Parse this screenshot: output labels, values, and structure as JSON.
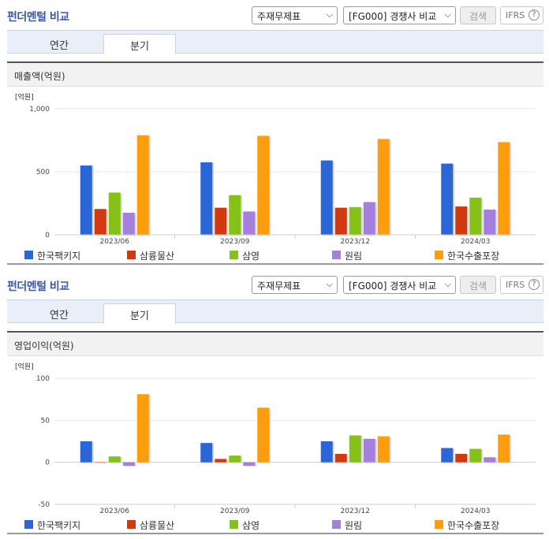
{
  "colors": {
    "s0": "#2a66d6",
    "s1": "#d13a10",
    "s2": "#86c118",
    "s3": "#a57fdd",
    "s4": "#fb9d0c"
  },
  "legend": [
    "한국팩키지",
    "삼륭물산",
    "삼영",
    "원림",
    "한국수출포장"
  ],
  "sections": [
    {
      "title": "펀더멘털 비교",
      "select1": "주재무제표",
      "select2": "[FG000] 경쟁사 비교",
      "search_label": "검색",
      "ifrs_label": "IFRS",
      "ifrs_help": "?",
      "tabs": [
        "연간",
        "분기"
      ],
      "active_tab": "분기",
      "panel_title": "매출액(억원)"
    },
    {
      "title": "펀더멘털 비교",
      "select1": "주재무제표",
      "select2": "[FG000] 경쟁사 비교",
      "search_label": "검색",
      "ifrs_label": "IFRS",
      "ifrs_help": "?",
      "tabs": [
        "연간",
        "분기"
      ],
      "active_tab": "분기",
      "panel_title": "영업이익(억원)"
    }
  ],
  "chart_data": [
    {
      "type": "bar",
      "unit_label": "[억원]",
      "categories": [
        "2023/06",
        "2023/09",
        "2023/12",
        "2024/03"
      ],
      "ylim": [
        0,
        1000
      ],
      "yticks": [
        0,
        500,
        1000
      ],
      "ytick_labels": [
        "0",
        "500",
        "1,000"
      ],
      "grid": true,
      "legend_position": "bottom",
      "series": [
        {
          "name": "한국팩키지",
          "values": [
            550,
            575,
            590,
            565
          ]
        },
        {
          "name": "삼륭물산",
          "values": [
            205,
            215,
            215,
            225
          ]
        },
        {
          "name": "삼영",
          "values": [
            335,
            315,
            220,
            295
          ]
        },
        {
          "name": "원림",
          "values": [
            175,
            185,
            260,
            200
          ]
        },
        {
          "name": "한국수출포장",
          "values": [
            790,
            785,
            760,
            735
          ]
        }
      ]
    },
    {
      "type": "bar",
      "unit_label": "[억원]",
      "categories": [
        "2023/06",
        "2023/09",
        "2023/12",
        "2024/03"
      ],
      "ylim": [
        -50,
        100
      ],
      "yticks": [
        -50,
        0,
        50,
        100
      ],
      "ytick_labels": [
        "-50",
        "0",
        "50",
        "100"
      ],
      "grid": true,
      "legend_position": "bottom",
      "series": [
        {
          "name": "한국팩키지",
          "values": [
            25,
            23,
            25,
            17
          ]
        },
        {
          "name": "삼륭물산",
          "values": [
            0,
            4,
            10,
            10
          ]
        },
        {
          "name": "삼영",
          "values": [
            7,
            8,
            32,
            16
          ]
        },
        {
          "name": "원림",
          "values": [
            -4,
            -4,
            28,
            6
          ]
        },
        {
          "name": "한국수출포장",
          "values": [
            81,
            65,
            31,
            33
          ]
        }
      ]
    }
  ]
}
